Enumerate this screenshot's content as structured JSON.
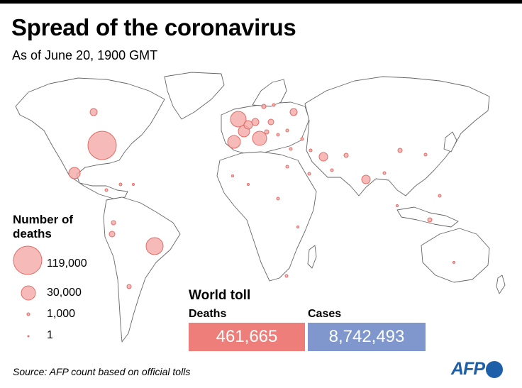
{
  "header": {
    "title": "Spread of the coronavirus",
    "subtitle": "As of June 20, 1900 GMT"
  },
  "legend": {
    "title": "Number of deaths",
    "items": [
      {
        "label": "119,000",
        "value": 119000
      },
      {
        "label": "30,000",
        "value": 30000
      },
      {
        "label": "1,000",
        "value": 1000
      },
      {
        "label": "1",
        "value": 1
      }
    ]
  },
  "world_toll": {
    "title": "World toll",
    "deaths_label": "Deaths",
    "deaths_value": "461,665",
    "cases_label": "Cases",
    "cases_value": "8,742,493"
  },
  "footer": {
    "source": "Source: AFP count based on official tolls",
    "logo_text": "AFP"
  },
  "colors": {
    "bubble_fill": "#f4aaa6",
    "bubble_stroke": "#e06b66",
    "deaths_box": "#ed7e7a",
    "cases_box": "#7f97cd",
    "land_stroke": "#666666",
    "afp_blue": "#1d5fa8"
  }
}
